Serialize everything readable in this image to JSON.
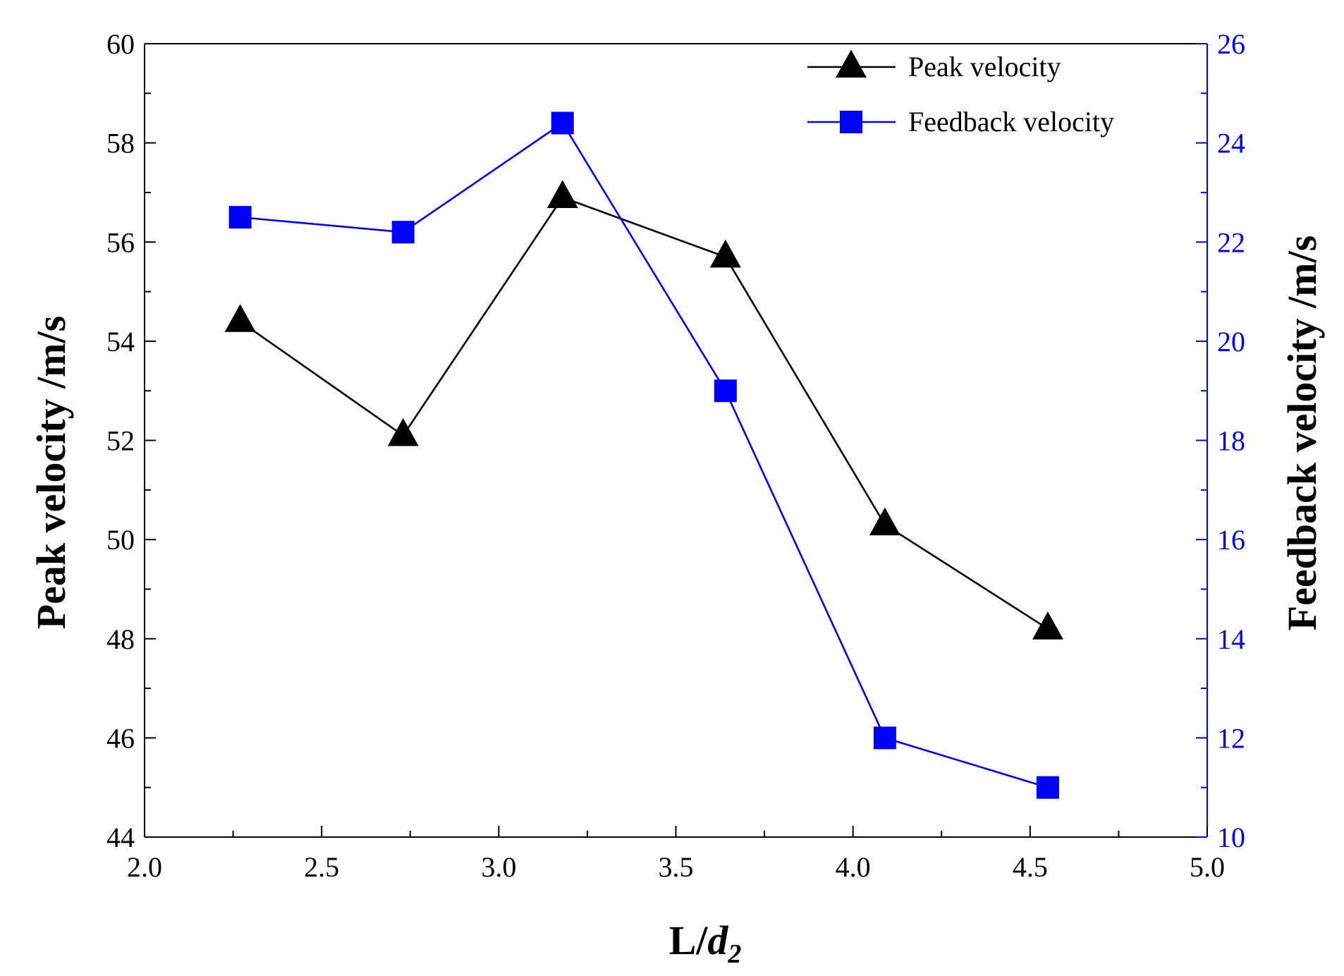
{
  "chart_data": {
    "type": "line",
    "xlabel": {
      "main": "L/",
      "italic": "d",
      "sub": "2"
    },
    "ylabel_left": "Peak velocity /m/s",
    "ylabel_right": "Feedback velocity /m/s",
    "xlim": [
      2.0,
      5.0
    ],
    "ylim_left": [
      44,
      60
    ],
    "ylim_right": [
      10,
      26
    ],
    "x_ticks": [
      "2.0",
      "2.5",
      "3.0",
      "3.5",
      "4.0",
      "4.5",
      "5.0"
    ],
    "y_left_ticks": [
      "44",
      "46",
      "48",
      "50",
      "52",
      "54",
      "56",
      "58",
      "60"
    ],
    "y_right_ticks": [
      "10",
      "12",
      "14",
      "16",
      "18",
      "20",
      "22",
      "24",
      "26"
    ],
    "grid": false,
    "legend_position": "top-right",
    "series": [
      {
        "name": "Peak velocity",
        "axis": "left",
        "marker": "triangle",
        "color": "#000000",
        "x": [
          2.27,
          2.73,
          3.18,
          3.64,
          4.09,
          4.55
        ],
        "values": [
          54.4,
          52.1,
          56.9,
          55.7,
          50.3,
          48.2
        ]
      },
      {
        "name": "Feedback velocity",
        "axis": "right",
        "marker": "square",
        "color": "#0000ff",
        "x": [
          2.27,
          2.73,
          3.18,
          3.64,
          4.09,
          4.55
        ],
        "values": [
          22.5,
          22.2,
          24.4,
          19.0,
          12.0,
          11.0
        ]
      }
    ],
    "colors": {
      "left_axis": "#000000",
      "right_axis": "#0000ff"
    }
  }
}
